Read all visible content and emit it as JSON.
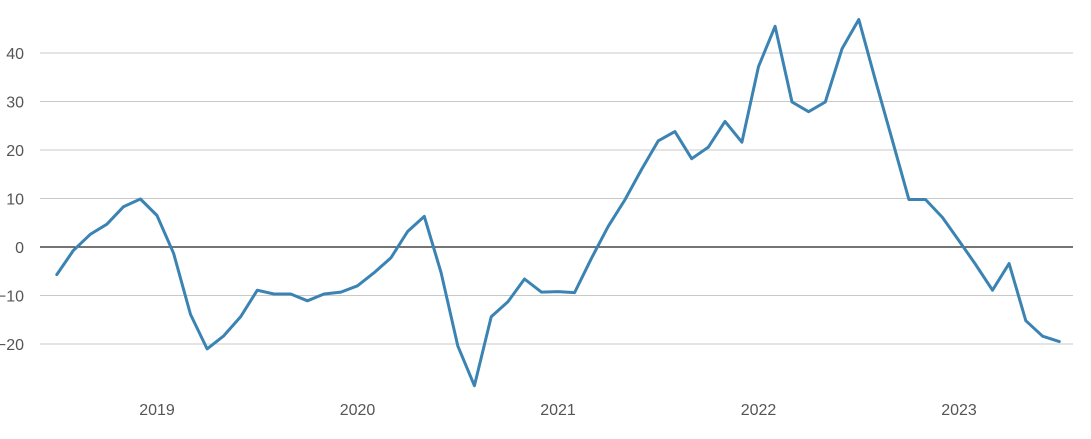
{
  "chart_data": {
    "type": "line",
    "title": "",
    "xlabel": "",
    "ylabel": "",
    "ylim": [
      -30,
      48
    ],
    "yticks": [
      40,
      30,
      20,
      10,
      0,
      -10,
      -20
    ],
    "ytick_labels": [
      "40",
      "30",
      "20",
      "10",
      "0",
      "−10",
      "−20"
    ],
    "xticks": [
      {
        "x": 2019.0,
        "label": "2019"
      },
      {
        "x": 2020.0,
        "label": "2020"
      },
      {
        "x": 2021.0,
        "label": "2021"
      },
      {
        "x": 2022.0,
        "label": "2022"
      },
      {
        "x": 2023.0,
        "label": "2023"
      }
    ],
    "grid": true,
    "zero_line": true,
    "line_color": "#3a83b3",
    "series": [
      {
        "x": [
          2018.5,
          2018.583,
          2018.667,
          2018.75,
          2018.833,
          2018.917,
          2019.0,
          2019.083,
          2019.167,
          2019.25,
          2019.333,
          2019.417,
          2019.5,
          2019.583,
          2019.667,
          2019.75,
          2019.833,
          2019.917,
          2020.0,
          2020.083,
          2020.167,
          2020.25,
          2020.333,
          2020.417,
          2020.5,
          2020.583,
          2020.667,
          2020.75,
          2020.833,
          2020.917,
          2021.0,
          2021.083,
          2021.167,
          2021.25,
          2021.333,
          2021.417,
          2021.5,
          2021.583,
          2021.667,
          2021.75,
          2021.833,
          2021.917,
          2022.0,
          2022.083,
          2022.167,
          2022.25,
          2022.333,
          2022.417,
          2022.5,
          2022.583,
          2022.667,
          2022.75,
          2022.833,
          2022.917,
          2023.0,
          2023.083,
          2023.167,
          2023.25,
          2023.333,
          2023.417,
          2023.5
        ],
        "values": [
          -5.7,
          -0.7,
          2.6,
          4.7,
          8.3,
          9.9,
          6.5,
          -1.3,
          -13.9,
          -21.0,
          -18.3,
          -14.4,
          -8.9,
          -9.7,
          -9.7,
          -11.1,
          -9.7,
          -9.3,
          -8.0,
          -5.3,
          -2.2,
          3.2,
          6.3,
          -5.3,
          -20.4,
          -28.6,
          -14.4,
          -11.3,
          -6.6,
          -9.3,
          -9.2,
          -9.4,
          -2.3,
          4.2,
          9.7,
          16.0,
          21.9,
          23.8,
          18.2,
          20.6,
          25.9,
          21.6,
          37.2,
          45.5,
          29.9,
          27.9,
          29.9,
          40.9,
          46.9,
          34.4,
          22.1,
          9.8,
          9.8,
          6.1,
          1.3,
          -3.6,
          -8.9,
          -3.4,
          -15.2,
          -18.4,
          -19.5
        ]
      }
    ]
  }
}
